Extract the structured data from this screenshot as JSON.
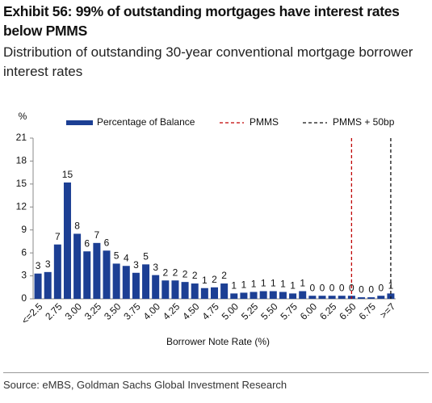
{
  "chart_data": {
    "type": "bar",
    "title": "Exhibit 56: 99% of outstanding mortgages have interest rates below PMMS",
    "subtitle": "Distribution of outstanding 30-year conventional mortgage borrower interest rates",
    "y_label": "%",
    "x_label": "Borrower Note Rate (%)",
    "source": "Source: eMBS, Goldman Sachs Global Investment Research",
    "categories": [
      "<=2.5",
      null,
      "2.75",
      null,
      "3.00",
      null,
      "3.25",
      null,
      "3.50",
      null,
      "3.75",
      null,
      "4.00",
      null,
      "4.25",
      null,
      "4.50",
      null,
      "4.75",
      null,
      "5.00",
      null,
      "5.25",
      null,
      "5.50",
      null,
      "5.75",
      null,
      "6.00",
      null,
      "6.25",
      null,
      "6.50",
      null,
      "6.75",
      null,
      ">=7"
    ],
    "series": [
      {
        "name": "Percentage of Balance",
        "color": "#1c3f94",
        "values": [
          3.3,
          3.5,
          7.1,
          15.2,
          8.5,
          6.2,
          7.3,
          6.3,
          4.6,
          4.3,
          3.4,
          4.5,
          3.1,
          2.4,
          2.4,
          2.2,
          2.0,
          1.4,
          1.5,
          2.0,
          0.7,
          0.8,
          0.9,
          1.0,
          1.0,
          0.9,
          0.7,
          1.0,
          0.4,
          0.4,
          0.4,
          0.4,
          0.4,
          0.2,
          0.2,
          0.4,
          0.7
        ],
        "value_labels": [
          "3",
          "3",
          "7",
          "15",
          "8",
          "6",
          "7",
          "6",
          "5",
          "4",
          "3",
          "5",
          "3",
          "2",
          "2",
          "2",
          "2",
          "1",
          "2",
          "2",
          "1",
          "1",
          "1",
          "1",
          "1",
          "1",
          "1",
          "1",
          "0",
          "0",
          "0",
          "0",
          "0",
          "0",
          "0",
          "0",
          "1"
        ]
      }
    ],
    "reference_lines": [
      {
        "name": "PMMS",
        "at": "6.50",
        "color": "#c00000"
      },
      {
        "name": "PMMS + 50bp",
        "at": ">=7",
        "color": "#111111"
      }
    ],
    "ylim": [
      0,
      21
    ],
    "yticks": [
      0,
      3,
      6,
      9,
      12,
      15,
      18,
      21
    ]
  }
}
